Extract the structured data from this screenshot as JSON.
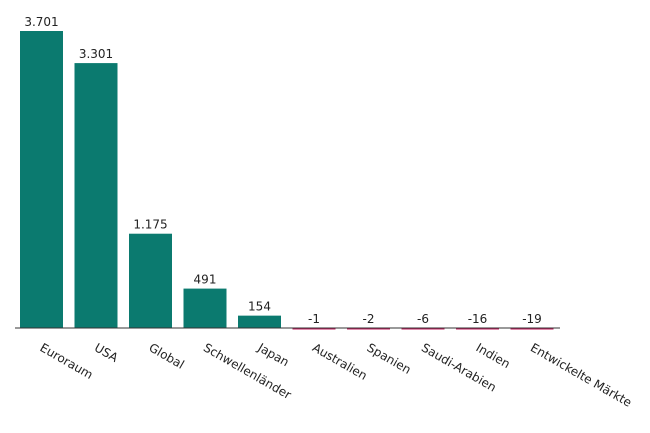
{
  "chart_data": {
    "type": "bar",
    "title": "",
    "xlabel": "",
    "ylabel": "",
    "categories": [
      "Euroraum",
      "USA",
      "Global",
      "Schwellenländer",
      "Japan",
      "Australien",
      "Spanien",
      "Saudi-Arabien",
      "Indien",
      "Entwickelte Märkte"
    ],
    "values": [
      3701,
      3301,
      1175,
      491,
      154,
      -1,
      -2,
      -6,
      -16,
      -19
    ],
    "value_labels": [
      "3.701",
      "3.301",
      "1.175",
      "491",
      "154",
      "-1",
      "-2",
      "-6",
      "-16",
      "-19"
    ],
    "ylim": [
      -19,
      3701
    ],
    "grid": false,
    "legend": "none",
    "colors": {
      "positive": "#0b7a6f",
      "negative": "#c2185b",
      "baseline": "#333333"
    }
  }
}
